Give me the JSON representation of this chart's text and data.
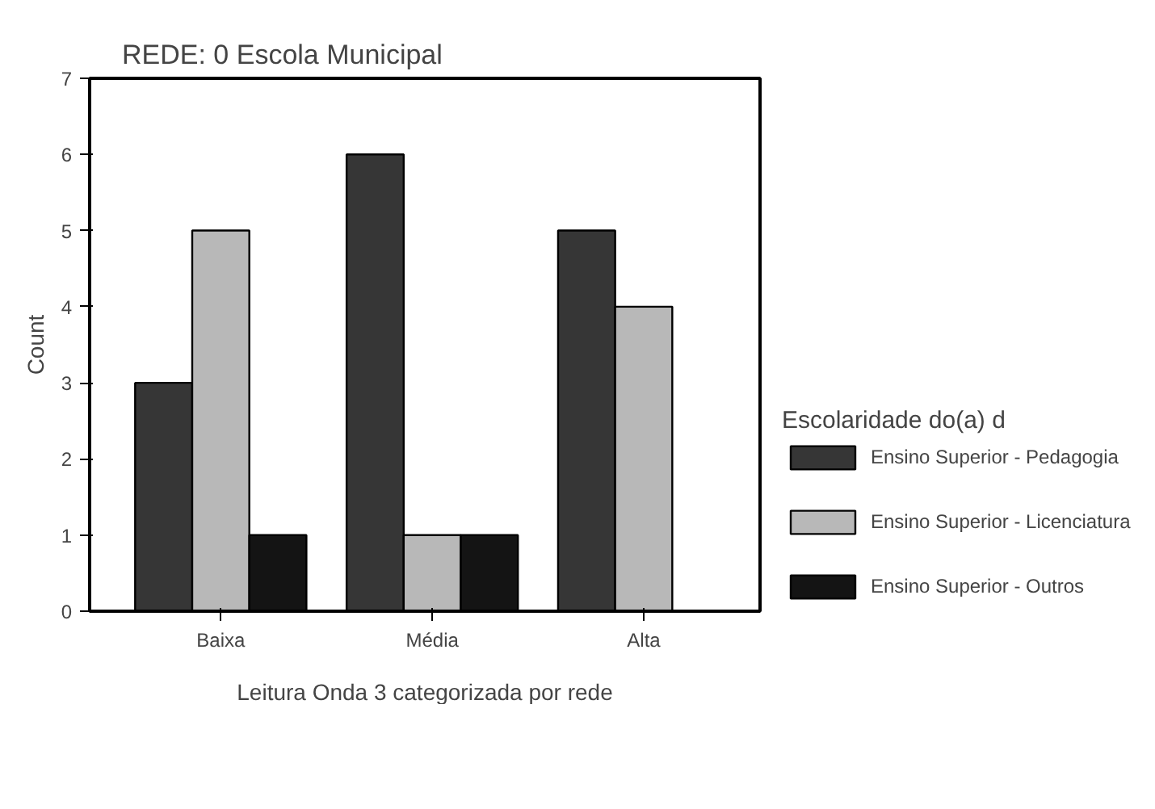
{
  "chart_data": {
    "type": "bar",
    "title": "REDE:  0   Escola Municipal",
    "xlabel": "Leitura Onda 3 categorizada por rede",
    "ylabel": "Count",
    "legend_title": "Escolaridade do(a) d",
    "categories": [
      "Baixa",
      "Média",
      "Alta"
    ],
    "series": [
      {
        "name": "Ensino Superior - Pedagogia",
        "color": "#363636",
        "values": [
          3,
          6,
          5
        ]
      },
      {
        "name": "Ensino Superior - Licenciatura",
        "color": "#b8b8b8",
        "values": [
          5,
          1,
          4
        ]
      },
      {
        "name": "Ensino Superior - Outros",
        "color": "#141414",
        "values": [
          1,
          1,
          null
        ]
      }
    ],
    "ylim": [
      0,
      7
    ],
    "yticks": [
      0,
      1,
      2,
      3,
      4,
      5,
      6,
      7
    ],
    "grid": false,
    "legend": "right"
  }
}
